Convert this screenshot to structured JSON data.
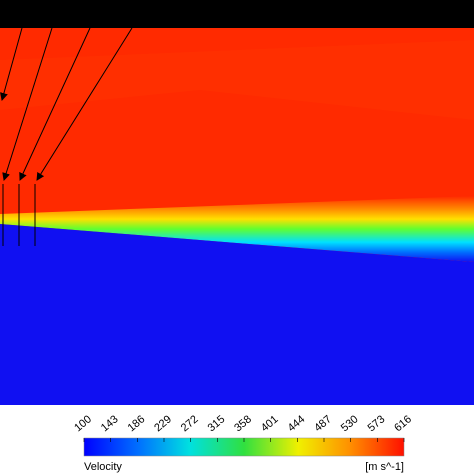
{
  "colorbar": {
    "label": "Velocity",
    "unit": "[m s^-1]",
    "ticks": [
      100,
      143,
      186,
      229,
      272,
      315,
      358,
      401,
      444,
      487,
      530,
      573,
      616
    ]
  }
}
